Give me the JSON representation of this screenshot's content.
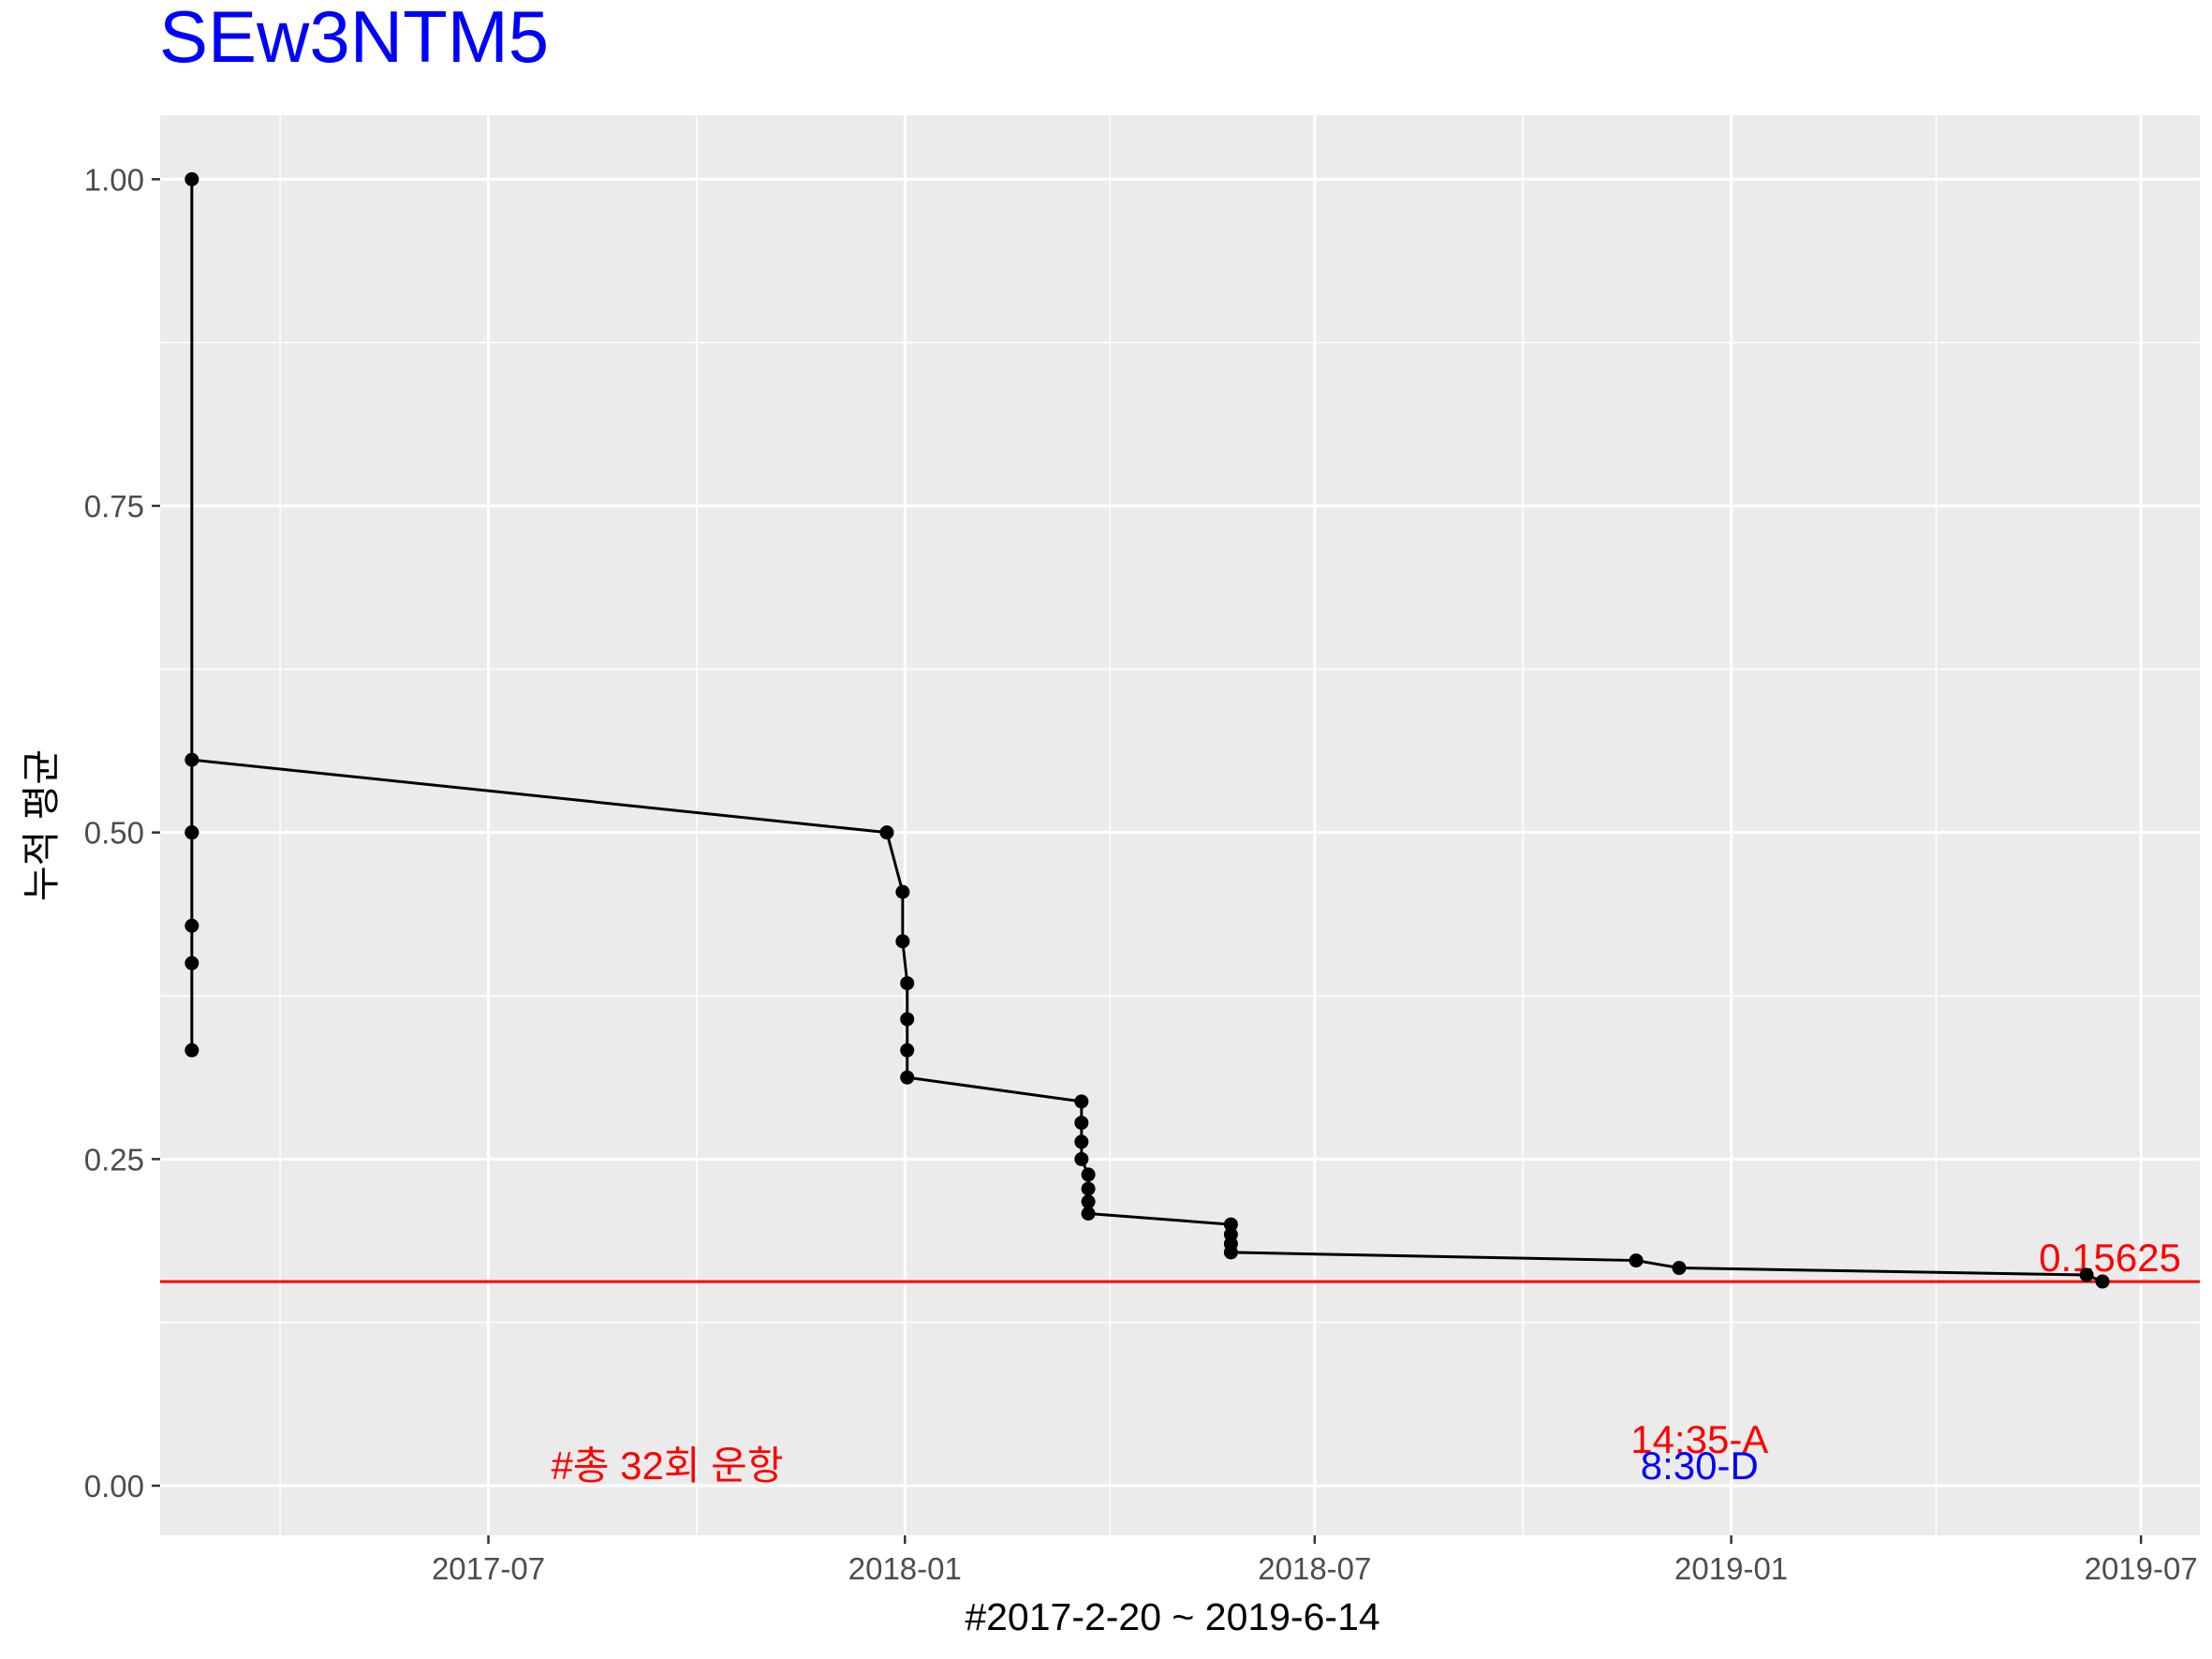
{
  "chart_data": {
    "type": "line",
    "title": "SEw3NTM5",
    "xlabel": "#2017-2-20 ~ 2019-6-14",
    "ylabel": "누적 평균",
    "x_ticks": [
      "2017-07",
      "2018-01",
      "2018-07",
      "2019-01",
      "2019-07"
    ],
    "x_tick_dates": [
      "2017-07-01",
      "2018-01-01",
      "2018-07-01",
      "2019-01-01",
      "2019-07-01"
    ],
    "y_ticks": [
      "0.00",
      "0.25",
      "0.50",
      "0.75",
      "1.00"
    ],
    "y_tick_values": [
      0,
      0.25,
      0.5,
      0.75,
      1.0
    ],
    "xlim": [
      "2017-02-06",
      "2019-07-27"
    ],
    "ylim": [
      -0.038,
      1.049
    ],
    "grid": true,
    "series": [
      {
        "points": [
          {
            "x": "2017-02-20",
            "y": 1.0
          },
          {
            "x": "2017-02-20",
            "y": 0.5
          },
          {
            "x": "2017-02-20",
            "y": 0.3333
          },
          {
            "x": "2017-02-20",
            "y": 0.4
          },
          {
            "x": "2017-02-20",
            "y": 0.4286
          },
          {
            "x": "2017-02-20",
            "y": 0.5
          },
          {
            "x": "2017-02-20",
            "y": 0.5556
          },
          {
            "x": "2017-12-24",
            "y": 0.5
          },
          {
            "x": "2017-12-31",
            "y": 0.4545
          },
          {
            "x": "2017-12-31",
            "y": 0.4167
          },
          {
            "x": "2018-01-02",
            "y": 0.3846
          },
          {
            "x": "2018-01-02",
            "y": 0.3571
          },
          {
            "x": "2018-01-02",
            "y": 0.3333
          },
          {
            "x": "2018-01-02",
            "y": 0.3125
          },
          {
            "x": "2018-03-20",
            "y": 0.2941
          },
          {
            "x": "2018-03-20",
            "y": 0.2778
          },
          {
            "x": "2018-03-20",
            "y": 0.2632
          },
          {
            "x": "2018-03-20",
            "y": 0.25
          },
          {
            "x": "2018-03-23",
            "y": 0.2381
          },
          {
            "x": "2018-03-23",
            "y": 0.2273
          },
          {
            "x": "2018-03-23",
            "y": 0.2174
          },
          {
            "x": "2018-03-23",
            "y": 0.2083
          },
          {
            "x": "2018-05-25",
            "y": 0.2
          },
          {
            "x": "2018-05-25",
            "y": 0.1923
          },
          {
            "x": "2018-05-25",
            "y": 0.1852
          },
          {
            "x": "2018-05-25",
            "y": 0.1786
          },
          {
            "x": "2018-11-20",
            "y": 0.1724
          },
          {
            "x": "2018-12-09",
            "y": 0.1667
          },
          {
            "x": "2019-06-07",
            "y": 0.1613
          },
          {
            "x": "2019-06-14",
            "y": 0.1563
          }
        ]
      }
    ],
    "hline": {
      "y": 0.15625,
      "label": "0.15625",
      "color": "#ff0000"
    },
    "annotations": [
      {
        "text": "#총 32회 운항",
        "x": "2017-09-18",
        "y": 0.015,
        "color": "#ff0000"
      },
      {
        "text": "14:35-A",
        "x": "2018-12-18",
        "y": 0.035,
        "color": "#ff0000"
      },
      {
        "text": "8:30-D",
        "x": "2018-12-18",
        "y": 0.015,
        "color": "#0000ff"
      }
    ],
    "colors": {
      "panel": "#ebebeb",
      "grid": "#ffffff",
      "line": "#000000",
      "point": "#000000"
    }
  }
}
